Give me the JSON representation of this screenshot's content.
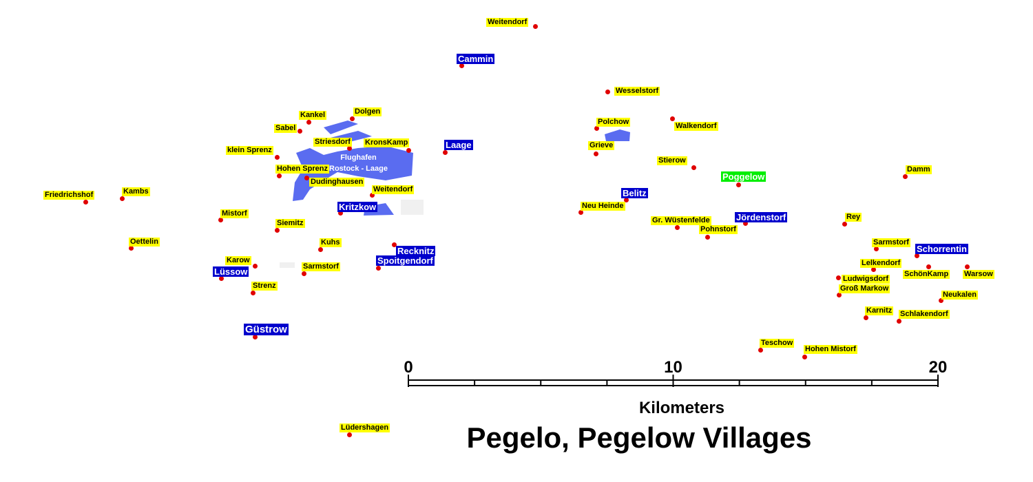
{
  "title": "Pegelo, Pegelow Villages",
  "airport": {
    "lines": [
      "Flughafen",
      "Rostock - Laage"
    ]
  },
  "scale": {
    "ticks": [
      0,
      10,
      20
    ],
    "unit": "Kilometers"
  },
  "places": [
    {
      "name": "Weitendorf",
      "color": "#ffff00"
    },
    {
      "name": "Cammin",
      "color": "#0000cc"
    },
    {
      "name": "Wesselstorf",
      "color": "#ffff00"
    },
    {
      "name": "Kankel",
      "color": "#ffff00"
    },
    {
      "name": "Dolgen",
      "color": "#ffff00"
    },
    {
      "name": "Sabel",
      "color": "#ffff00"
    },
    {
      "name": "Polchow",
      "color": "#ffff00"
    },
    {
      "name": "Walkendorf",
      "color": "#ffff00"
    },
    {
      "name": "Striesdorf",
      "color": "#ffff00"
    },
    {
      "name": "KronsKamp",
      "color": "#ffff00"
    },
    {
      "name": "Laage",
      "color": "#0000cc"
    },
    {
      "name": "Grieve",
      "color": "#ffff00"
    },
    {
      "name": "klein Sprenz",
      "color": "#ffff00"
    },
    {
      "name": "Stierow",
      "color": "#ffff00"
    },
    {
      "name": "Hohen Sprenz",
      "color": "#ffff00"
    },
    {
      "name": "Dudinghausen",
      "color": "#ffff00"
    },
    {
      "name": "Damm",
      "color": "#ffff00"
    },
    {
      "name": "Poggelow",
      "color": "#00ee00"
    },
    {
      "name": "Friedrichshof",
      "color": "#ffff00"
    },
    {
      "name": "Kambs",
      "color": "#ffff00"
    },
    {
      "name": "Weitendorf",
      "color": "#ffff00"
    },
    {
      "name": "Belitz",
      "color": "#0000cc"
    },
    {
      "name": "Kritzkow",
      "color": "#0000cc"
    },
    {
      "name": "Neu  Heinde",
      "color": "#ffff00"
    },
    {
      "name": "Mistorf",
      "color": "#ffff00"
    },
    {
      "name": "Siemitz",
      "color": "#ffff00"
    },
    {
      "name": "Gr. Wüstenfelde",
      "color": "#ffff00"
    },
    {
      "name": "Jördenstorf",
      "color": "#0000cc"
    },
    {
      "name": "Rey",
      "color": "#ffff00"
    },
    {
      "name": "Pohnstorf",
      "color": "#ffff00"
    },
    {
      "name": "Oettelin",
      "color": "#ffff00"
    },
    {
      "name": "Kuhs",
      "color": "#ffff00"
    },
    {
      "name": "Recknitz",
      "color": "#0000cc"
    },
    {
      "name": "Sarmstorf",
      "color": "#ffff00"
    },
    {
      "name": "Schorrentin",
      "color": "#0000cc"
    },
    {
      "name": "Spoitgendorf",
      "color": "#0000cc"
    },
    {
      "name": "Karow",
      "color": "#ffff00"
    },
    {
      "name": "Lelkendorf",
      "color": "#ffff00"
    },
    {
      "name": "SchönKamp",
      "color": "#ffff00"
    },
    {
      "name": "Warsow",
      "color": "#ffff00"
    },
    {
      "name": "Sarmstorf",
      "color": "#ffff00"
    },
    {
      "name": "Lüssow",
      "color": "#0000cc"
    },
    {
      "name": "Ludwigsdorf",
      "color": "#ffff00"
    },
    {
      "name": "Strenz",
      "color": "#ffff00"
    },
    {
      "name": "Groß Markow",
      "color": "#ffff00"
    },
    {
      "name": "Neukalen",
      "color": "#ffff00"
    },
    {
      "name": "Karnitz",
      "color": "#ffff00"
    },
    {
      "name": "Schlakendorf",
      "color": "#ffff00"
    },
    {
      "name": "Güstrow",
      "color": "#0000cc"
    },
    {
      "name": "Teschow",
      "color": "#ffff00"
    },
    {
      "name": "Hohen Mistorf",
      "color": "#ffff00"
    },
    {
      "name": "Lüdershagen",
      "color": "#ffff00"
    }
  ]
}
